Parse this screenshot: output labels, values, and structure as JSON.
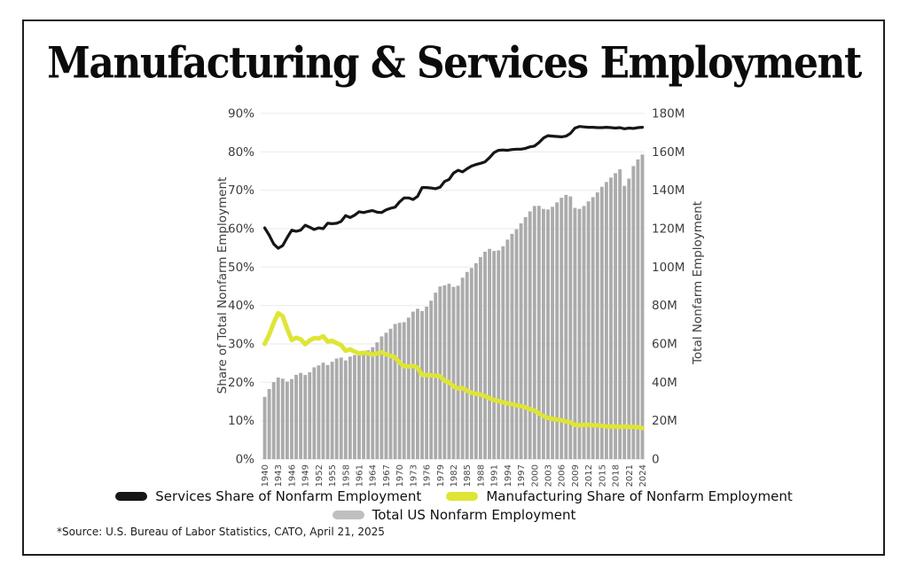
{
  "title": "Manufacturing & Services Employment",
  "source_note": "*Source: U.S. Bureau of Labor Statistics, CATO, April 21, 2025",
  "colors": {
    "services_line": "#161616",
    "manufacturing_line": "#dfe535",
    "bars": "#ababab",
    "gridline": "#ededed",
    "legend_bar_swatch": "#bfbfbf"
  },
  "legend": [
    {
      "label": "Services Share of Nonfarm Employment",
      "color": "#161616"
    },
    {
      "label": "Manufacturing Share of Nonfarm Employment",
      "color": "#dfe535"
    },
    {
      "label": "Total US Nonfarm Employment",
      "color": "#bfbfbf"
    }
  ],
  "chart_data": {
    "type": "combo",
    "title": "Manufacturing & Services Employment",
    "grid": true,
    "left_axis": {
      "label": "Share of Total Nonfarm Employment",
      "min": 0,
      "max": 90,
      "tick_labels": [
        "90%",
        "80%",
        "70%",
        "60%",
        "50%",
        "40%",
        "30%",
        "20%",
        "10%",
        "0%"
      ]
    },
    "right_axis": {
      "label": "Total Nonfarm Employment",
      "min": 0,
      "max": 180,
      "tick_labels": [
        "180M",
        "160M",
        "140M",
        "120M",
        "100M",
        "80M",
        "60M",
        "40M",
        "20M",
        "0"
      ]
    },
    "x": {
      "start_year": 1940,
      "end_year": 2024,
      "label_every": 3
    },
    "x_tick_labels": [
      "1940",
      "1943",
      "1946",
      "1949",
      "1952",
      "1955",
      "1958",
      "1961",
      "1964",
      "1967",
      "1970",
      "1973",
      "1976",
      "1979",
      "1982",
      "1985",
      "1988",
      "1991",
      "1994",
      "1997",
      "2000",
      "2003",
      "2006",
      "2009",
      "2012",
      "2015",
      "2018",
      "2021",
      "2024"
    ],
    "series": [
      {
        "id": "services-share",
        "name": "Services Share of Nonfarm Employment",
        "type": "line",
        "axis": "left",
        "color": "#161616",
        "width": 3.2,
        "values": [
          60.2,
          58.3,
          56.0,
          54.9,
          55.6,
          57.7,
          59.6,
          59.3,
          59.6,
          60.9,
          60.4,
          59.8,
          60.2,
          60.0,
          61.4,
          61.3,
          61.4,
          61.9,
          63.4,
          62.9,
          63.5,
          64.4,
          64.2,
          64.5,
          64.7,
          64.3,
          64.2,
          64.9,
          65.3,
          65.6,
          67.0,
          68.0,
          68.0,
          67.6,
          68.4,
          70.7,
          70.7,
          70.6,
          70.4,
          70.8,
          72.3,
          72.8,
          74.5,
          75.2,
          74.8,
          75.6,
          76.3,
          76.7,
          77.0,
          77.4,
          78.5,
          79.8,
          80.4,
          80.5,
          80.4,
          80.6,
          80.7,
          80.7,
          80.9,
          81.3,
          81.5,
          82.4,
          83.6,
          84.2,
          84.1,
          84.0,
          83.9,
          84.1,
          84.8,
          86.2,
          86.6,
          86.5,
          86.4,
          86.4,
          86.3,
          86.3,
          86.4,
          86.3,
          86.2,
          86.3,
          86.0,
          86.2,
          86.1,
          86.3,
          86.4
        ]
      },
      {
        "id": "manufacturing-share",
        "name": "Manufacturing Share of Nonfarm Employment",
        "type": "line",
        "axis": "left",
        "color": "#dfe535",
        "width": 5,
        "values": [
          30.0,
          32.4,
          35.5,
          38.0,
          37.2,
          33.9,
          31.0,
          31.6,
          31.2,
          29.9,
          30.9,
          31.5,
          31.4,
          32.0,
          30.6,
          30.8,
          30.2,
          29.7,
          28.2,
          28.6,
          28.0,
          27.5,
          27.7,
          27.5,
          27.2,
          27.5,
          27.8,
          27.3,
          26.9,
          26.5,
          25.1,
          24.2,
          24.1,
          24.3,
          23.8,
          21.9,
          21.9,
          21.8,
          21.7,
          21.6,
          20.4,
          20.0,
          18.9,
          18.4,
          18.5,
          17.8,
          17.3,
          17.0,
          16.8,
          16.4,
          15.8,
          15.4,
          15.1,
          14.8,
          14.5,
          14.3,
          14.0,
          13.8,
          13.5,
          13.0,
          12.6,
          11.9,
          11.2,
          10.7,
          10.5,
          10.3,
          10.1,
          9.8,
          9.6,
          8.9,
          8.8,
          8.9,
          8.9,
          8.8,
          8.8,
          8.7,
          8.5,
          8.5,
          8.5,
          8.4,
          8.5,
          8.4,
          8.4,
          8.3,
          8.1
        ]
      },
      {
        "id": "total-nonfarm",
        "name": "Total US Nonfarm Employment",
        "type": "bar",
        "axis": "right",
        "color": "#ababab",
        "values": [
          32.4,
          36.5,
          40.1,
          42.5,
          41.9,
          40.4,
          41.7,
          43.9,
          44.9,
          43.8,
          45.2,
          47.8,
          48.8,
          50.2,
          49.0,
          50.7,
          52.4,
          52.9,
          51.4,
          53.4,
          54.2,
          54.0,
          55.5,
          56.7,
          58.3,
          60.8,
          63.9,
          65.8,
          67.9,
          70.4,
          71.0,
          71.3,
          73.7,
          76.8,
          78.3,
          77.1,
          79.4,
          82.5,
          86.7,
          89.9,
          90.5,
          91.3,
          89.7,
          90.3,
          94.5,
          97.5,
          99.5,
          102.0,
          105.2,
          108.0,
          109.5,
          108.4,
          108.7,
          110.8,
          114.3,
          117.3,
          119.7,
          122.8,
          126.0,
          129.0,
          131.8,
          131.9,
          130.3,
          130.0,
          131.4,
          133.7,
          136.1,
          137.6,
          136.8,
          130.8,
          130.3,
          131.8,
          134.2,
          136.4,
          138.9,
          141.8,
          144.3,
          146.6,
          148.9,
          150.9,
          142.3,
          146.1,
          152.6,
          156.1,
          158.6
        ]
      }
    ]
  }
}
